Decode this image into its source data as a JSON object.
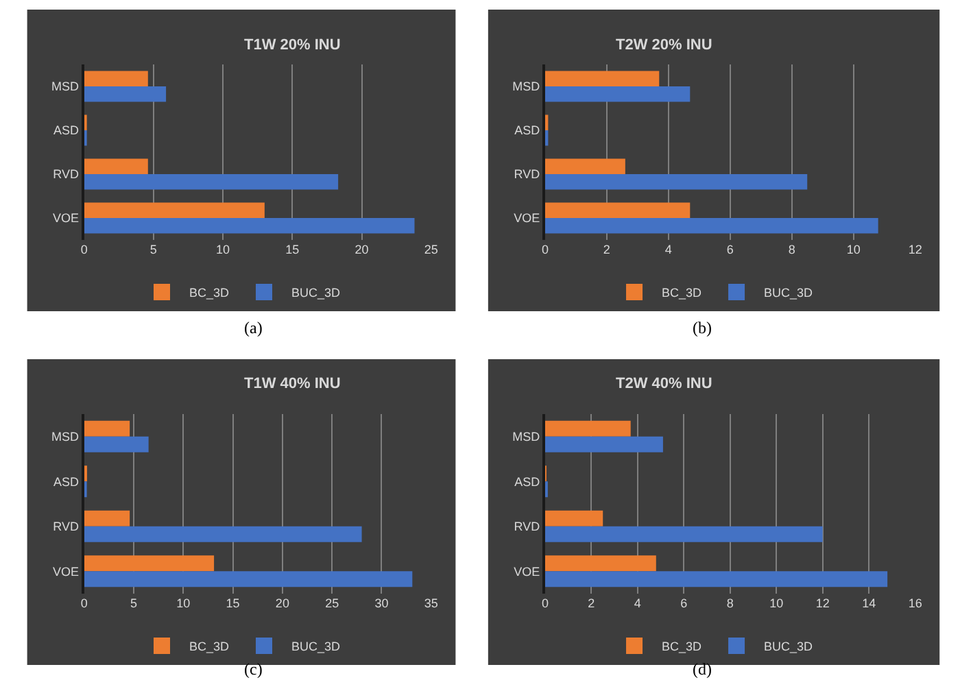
{
  "chart_data": [
    {
      "type": "bar",
      "orientation": "horizontal",
      "title": "T1W 20% INU",
      "categories": [
        "MSD",
        "ASD",
        "RVD",
        "VOE"
      ],
      "series": [
        {
          "name": "BC_3D",
          "color": "#ed7d31",
          "values": [
            4.6,
            0.2,
            4.6,
            13
          ]
        },
        {
          "name": "BUC_3D",
          "color": "#4472c4",
          "values": [
            5.9,
            0.2,
            18.3,
            23.8
          ]
        }
      ],
      "xlim": [
        0,
        25
      ],
      "xticks": [
        0,
        5,
        10,
        15,
        20,
        25
      ],
      "grid": "x",
      "legend": "bottom",
      "annotations": [
        "(a)"
      ]
    },
    {
      "type": "bar",
      "orientation": "horizontal",
      "title": "T2W 20% INU",
      "categories": [
        "MSD",
        "ASD",
        "RVD",
        "VOE"
      ],
      "series": [
        {
          "name": "BC_3D",
          "color": "#ed7d31",
          "values": [
            3.7,
            0.1,
            2.6,
            4.7
          ]
        },
        {
          "name": "BUC_3D",
          "color": "#4472c4",
          "values": [
            4.7,
            0.1,
            8.5,
            10.8
          ]
        }
      ],
      "xlim": [
        0,
        12
      ],
      "xticks": [
        0,
        2,
        4,
        6,
        8,
        10,
        12
      ],
      "grid": "x",
      "legend": "bottom",
      "annotations": [
        "(b)"
      ]
    },
    {
      "type": "bar",
      "orientation": "horizontal",
      "title": "T1W 40% INU",
      "categories": [
        "MSD",
        "ASD",
        "RVD",
        "VOE"
      ],
      "series": [
        {
          "name": "BC_3D",
          "color": "#ed7d31",
          "values": [
            4.6,
            0.3,
            4.6,
            13.1
          ]
        },
        {
          "name": "BUC_3D",
          "color": "#4472c4",
          "values": [
            6.5,
            0.2,
            28,
            33.1
          ]
        }
      ],
      "xlim": [
        0,
        35
      ],
      "xticks": [
        0,
        5,
        10,
        15,
        20,
        25,
        30,
        35
      ],
      "grid": "x",
      "legend": "bottom",
      "annotations": [
        "(c)"
      ]
    },
    {
      "type": "bar",
      "orientation": "horizontal",
      "title": "T2W 40% INU",
      "categories": [
        "MSD",
        "ASD",
        "RVD",
        "VOE"
      ],
      "series": [
        {
          "name": "BC_3D",
          "color": "#ed7d31",
          "values": [
            3.7,
            0.05,
            2.5,
            4.8
          ]
        },
        {
          "name": "BUC_3D",
          "color": "#4472c4",
          "values": [
            5.1,
            0.1,
            12,
            14.8
          ]
        }
      ],
      "xlim": [
        0,
        16
      ],
      "xticks": [
        0,
        2,
        4,
        6,
        8,
        10,
        12,
        14,
        16
      ],
      "grid": "x",
      "legend": "bottom",
      "annotations": [
        "(d)"
      ]
    }
  ]
}
